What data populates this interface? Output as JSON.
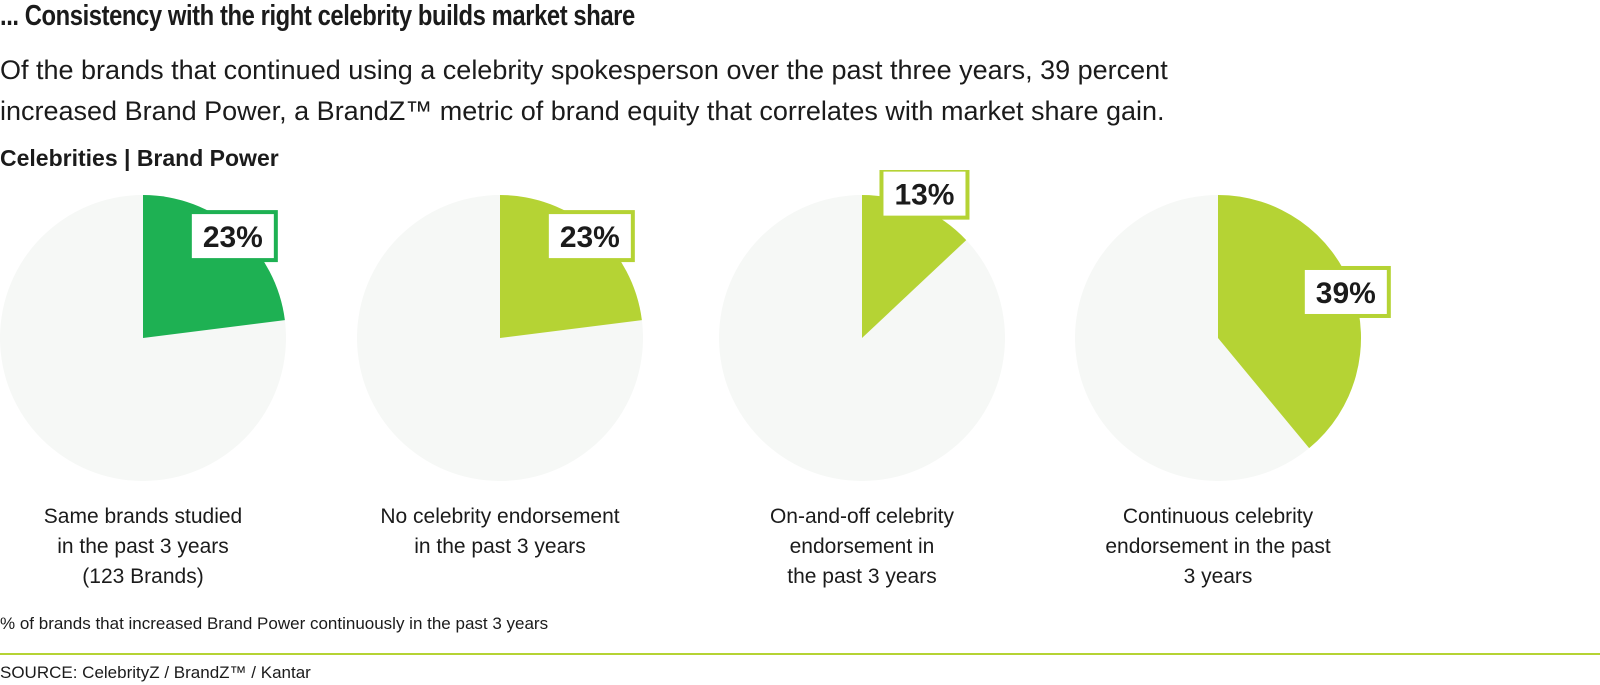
{
  "headline": "... Consistency with the right celebrity builds market share",
  "subtitle_line1": "Of the brands that continued using a celebrity spokesperson over the past three years, 39 percent",
  "subtitle_line2": "increased Brand Power, a BrandZ™ metric of brand equity that correlates with market share gain.",
  "colors": {
    "dark_green": "#1eb153",
    "lime": "#b5d334",
    "pie_background": "#f6f8f6",
    "text": "#1b1b1b"
  },
  "chart_data": {
    "type": "pie",
    "title": "Celebrities | Brand Power",
    "value_axis_label": "% of brands that increased Brand Power continuously in the past 3 years",
    "source": "SOURCE: CelebrityZ / BrandZ™ / Kantar",
    "pies": [
      {
        "category_lines": [
          "Same brands studied",
          "in the past 3 years",
          "(123 Brands)"
        ],
        "value": 23,
        "label": "23%",
        "color": "#1eb153"
      },
      {
        "category_lines": [
          "No celebrity endorsement",
          "in the past 3 years"
        ],
        "value": 23,
        "label": "23%",
        "color": "#b5d334"
      },
      {
        "category_lines": [
          "On-and-off celebrity",
          "endorsement in",
          "the past 3 years"
        ],
        "value": 13,
        "label": "13%",
        "color": "#b5d334"
      },
      {
        "category_lines": [
          "Continuous celebrity",
          "endorsement in the past",
          "3 years"
        ],
        "value": 39,
        "label": "39%",
        "color": "#b5d334"
      }
    ]
  }
}
